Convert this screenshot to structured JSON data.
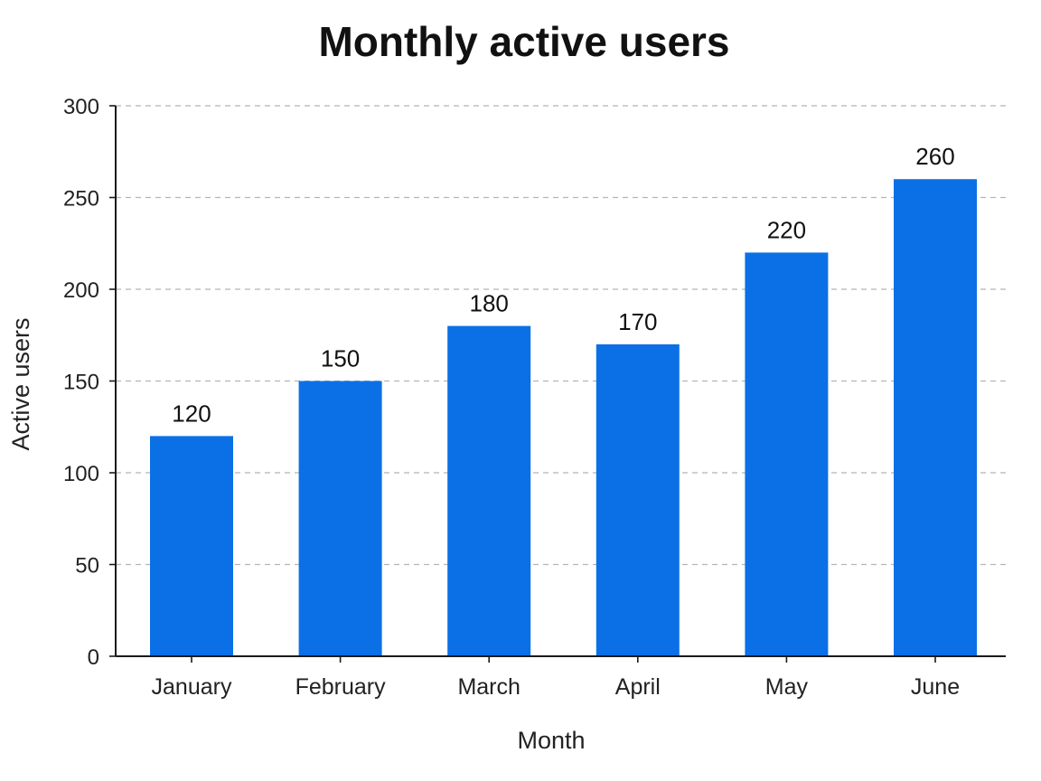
{
  "chart_data": {
    "type": "bar",
    "title": "Monthly active users",
    "xlabel": "Month",
    "ylabel": "Active users",
    "categories": [
      "January",
      "February",
      "March",
      "April",
      "May",
      "June"
    ],
    "values": [
      120,
      150,
      180,
      170,
      220,
      260
    ],
    "data_labels": [
      "120",
      "150",
      "180",
      "170",
      "220",
      "260"
    ],
    "ylim": [
      0,
      300
    ],
    "yticks": [
      0,
      50,
      100,
      150,
      200,
      250,
      300
    ],
    "grid": true,
    "legend": "none",
    "bar_color": "#0b70e6"
  }
}
